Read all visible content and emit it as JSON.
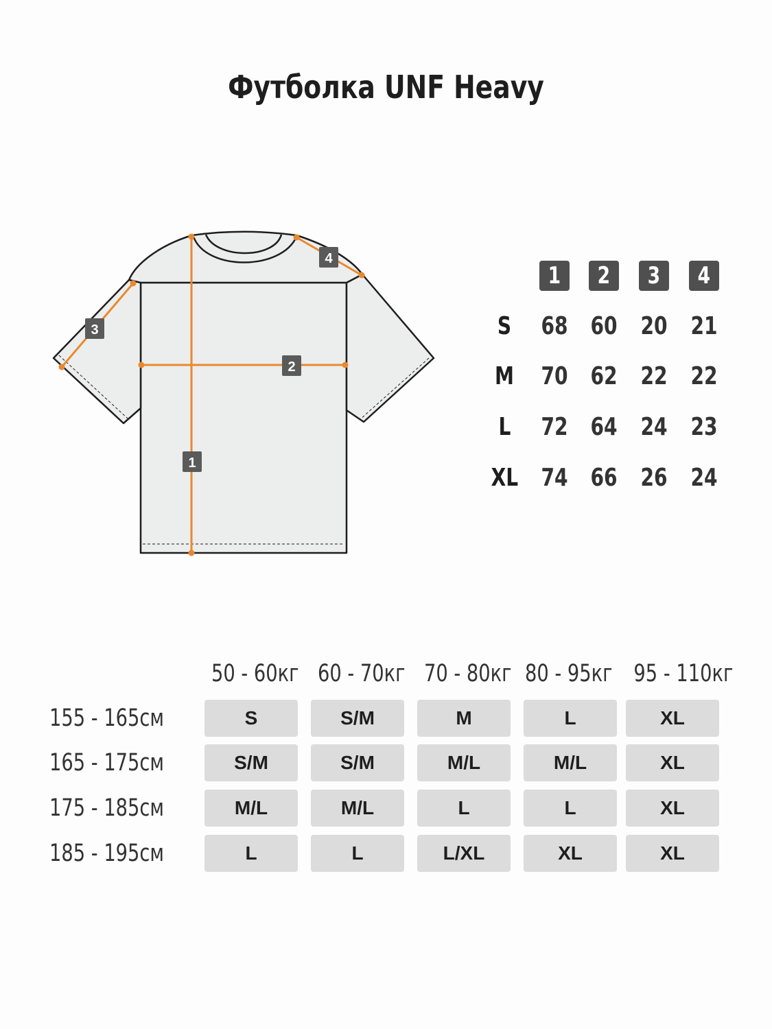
{
  "title": "Футболка UNF Heavy",
  "colors": {
    "accent": "#e8892e",
    "badge": "#5a5a5a",
    "cell": "#dcdcdc",
    "shirt_fill": "#eceeed"
  },
  "diagram": {
    "markers": [
      "1",
      "2",
      "3",
      "4"
    ]
  },
  "measurements": {
    "headers": [
      "1",
      "2",
      "3",
      "4"
    ],
    "rows": [
      {
        "size": "S",
        "values": [
          "68",
          "60",
          "20",
          "21"
        ]
      },
      {
        "size": "M",
        "values": [
          "70",
          "62",
          "22",
          "22"
        ]
      },
      {
        "size": "L",
        "values": [
          "72",
          "64",
          "24",
          "23"
        ]
      },
      {
        "size": "XL",
        "values": [
          "74",
          "66",
          "26",
          "24"
        ]
      }
    ]
  },
  "fit_grid": {
    "weights": [
      "50 - 60кг",
      "60 - 70кг",
      "70 - 80кг",
      "80 - 95кг",
      "95 - 110кг"
    ],
    "rows": [
      {
        "height": "155 - 165см",
        "sizes": [
          "S",
          "S/M",
          "M",
          "L",
          "XL"
        ]
      },
      {
        "height": "165 - 175см",
        "sizes": [
          "S/M",
          "S/M",
          "M/L",
          "M/L",
          "XL"
        ]
      },
      {
        "height": "175 - 185см",
        "sizes": [
          "M/L",
          "M/L",
          "L",
          "L",
          "XL"
        ]
      },
      {
        "height": "185 - 195см",
        "sizes": [
          "L",
          "L",
          "L/XL",
          "XL",
          "XL"
        ]
      }
    ]
  }
}
